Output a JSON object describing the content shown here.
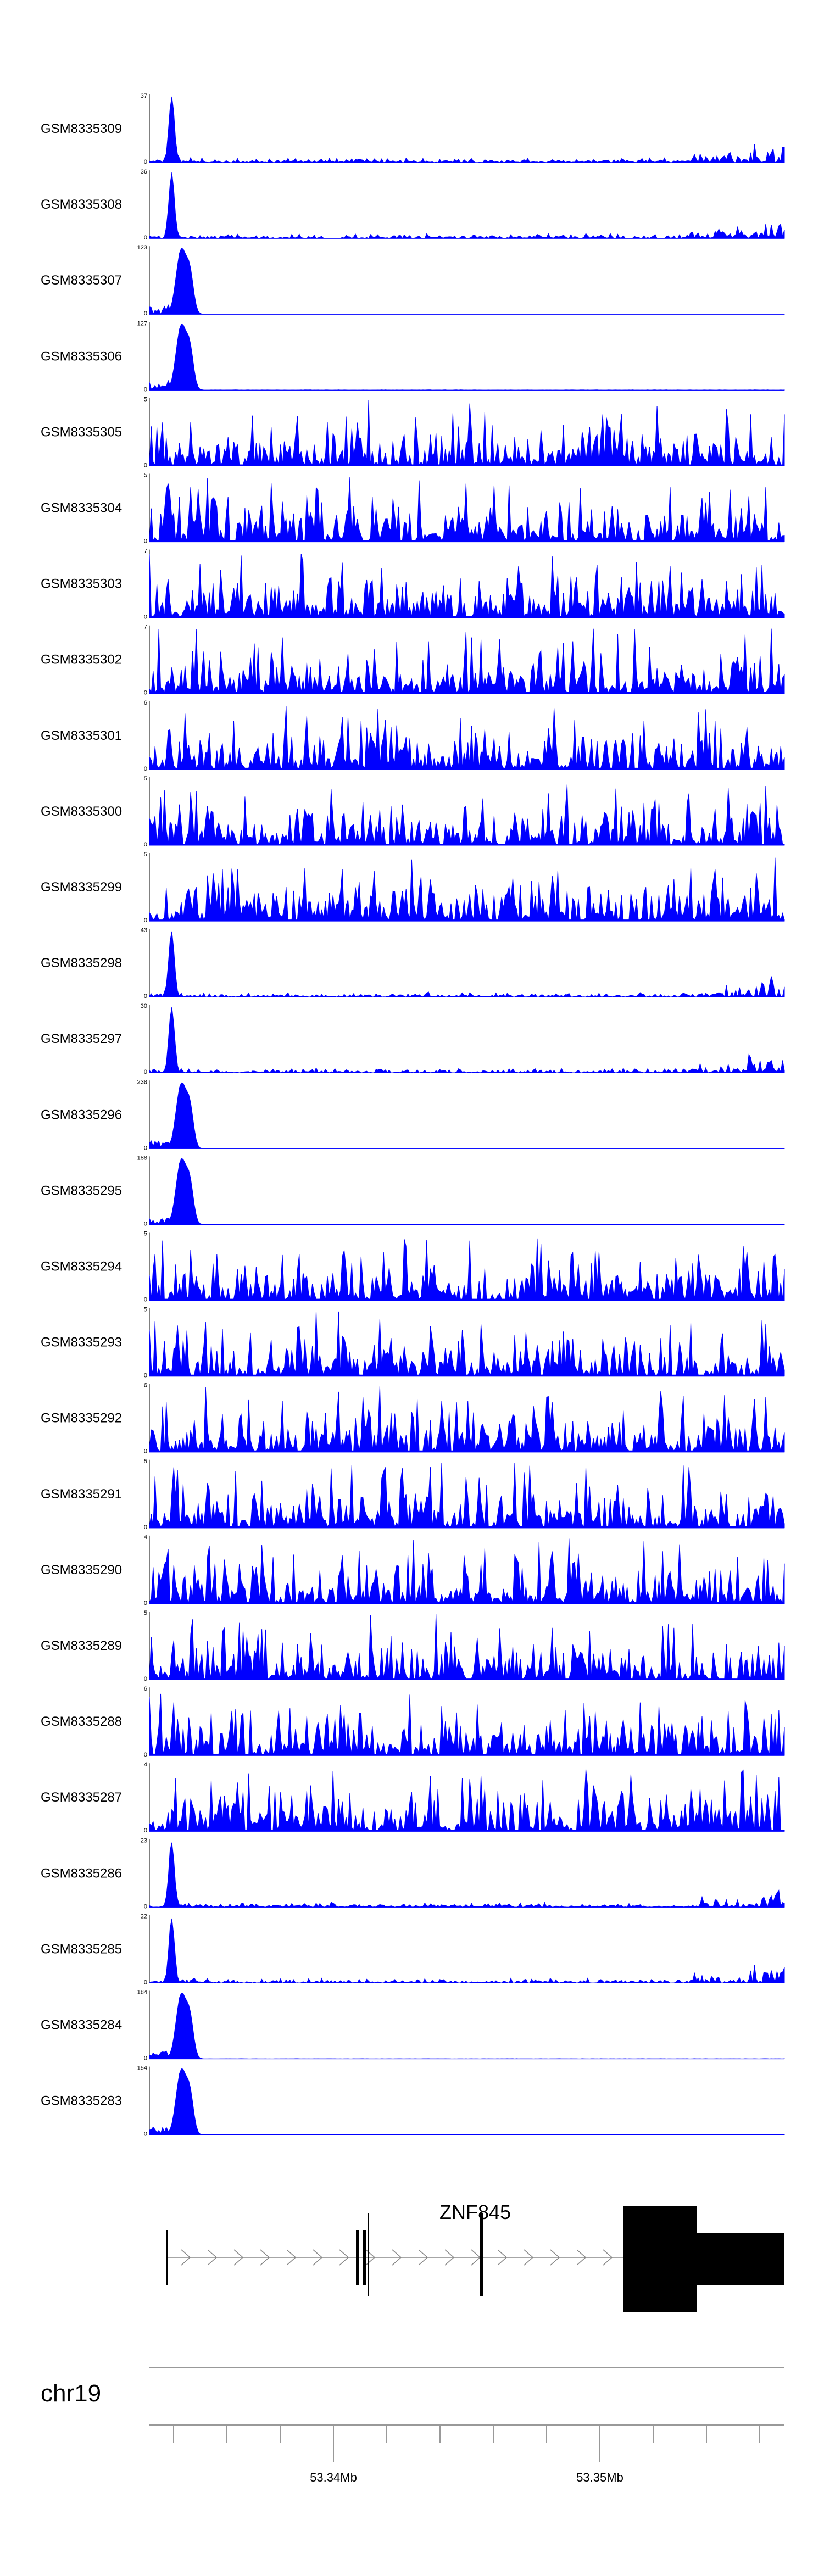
{
  "chart_data": {
    "type": "area",
    "fill_color": "#0000ff",
    "tracks": [
      {
        "name": "GSM8335309",
        "ymax": 37,
        "profile": "peak"
      },
      {
        "name": "GSM8335308",
        "ymax": 36,
        "profile": "peak"
      },
      {
        "name": "GSM8335307",
        "ymax": 123,
        "profile": "sharp"
      },
      {
        "name": "GSM8335306",
        "ymax": 127,
        "profile": "sharp"
      },
      {
        "name": "GSM8335305",
        "ymax": 5,
        "profile": "noise"
      },
      {
        "name": "GSM8335304",
        "ymax": 5,
        "profile": "noise"
      },
      {
        "name": "GSM8335303",
        "ymax": 7,
        "profile": "noise"
      },
      {
        "name": "GSM8335302",
        "ymax": 7,
        "profile": "noise"
      },
      {
        "name": "GSM8335301",
        "ymax": 6,
        "profile": "noise"
      },
      {
        "name": "GSM8335300",
        "ymax": 5,
        "profile": "noise"
      },
      {
        "name": "GSM8335299",
        "ymax": 5,
        "profile": "noise"
      },
      {
        "name": "GSM8335298",
        "ymax": 43,
        "profile": "peak"
      },
      {
        "name": "GSM8335297",
        "ymax": 30,
        "profile": "peak"
      },
      {
        "name": "GSM8335296",
        "ymax": 238,
        "profile": "sharp"
      },
      {
        "name": "GSM8335295",
        "ymax": 188,
        "profile": "sharp"
      },
      {
        "name": "GSM8335294",
        "ymax": 5,
        "profile": "noise"
      },
      {
        "name": "GSM8335293",
        "ymax": 5,
        "profile": "noise"
      },
      {
        "name": "GSM8335292",
        "ymax": 6,
        "profile": "noise"
      },
      {
        "name": "GSM8335291",
        "ymax": 5,
        "profile": "noise"
      },
      {
        "name": "GSM8335290",
        "ymax": 4,
        "profile": "noise"
      },
      {
        "name": "GSM8335289",
        "ymax": 5,
        "profile": "noise"
      },
      {
        "name": "GSM8335288",
        "ymax": 6,
        "profile": "noise"
      },
      {
        "name": "GSM8335287",
        "ymax": 4,
        "profile": "noise"
      },
      {
        "name": "GSM8335286",
        "ymax": 23,
        "profile": "peak"
      },
      {
        "name": "GSM8335285",
        "ymax": 22,
        "profile": "peak"
      },
      {
        "name": "GSM8335284",
        "ymax": 184,
        "profile": "sharp"
      },
      {
        "name": "GSM8335283",
        "ymax": 154,
        "profile": "sharp"
      }
    ],
    "ymin_label": "0",
    "gene": {
      "name": "ZNF845",
      "strand": "+"
    },
    "chromosome": "chr19",
    "axis": {
      "unit": "Mb",
      "major_ticks": [
        {
          "value": 53.34,
          "label": "53.34Mb"
        },
        {
          "value": 53.35,
          "label": "53.35Mb"
        }
      ],
      "minor_step": 0.002
    }
  }
}
